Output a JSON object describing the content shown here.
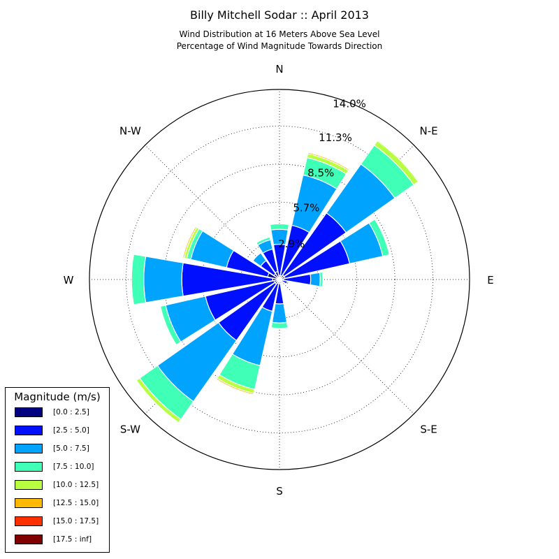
{
  "chart_data": {
    "type": "windrose",
    "title": "Billy Mitchell Sodar :: April 2013",
    "subtitle": [
      "Wind Distribution at 16 Meters Above Sea Level",
      "Percentage of Wind Magnitude Towards Direction"
    ],
    "directions": [
      "N",
      "N-E",
      "E",
      "S-E",
      "S",
      "S-W",
      "W",
      "N-W"
    ],
    "radial_ticks": [
      "2.9%",
      "5.7%",
      "8.5%",
      "11.3%",
      "14.0%"
    ],
    "radial_tick_values": [
      2.85,
      5.7,
      8.5,
      11.3,
      14.0
    ],
    "rmax": 14.0,
    "legend": {
      "title": "Magnitude (m/s)",
      "placement": "lower-left",
      "bins": [
        {
          "label": "[0.0 : 2.5]",
          "color": "#000080"
        },
        {
          "label": "[2.5 : 5.0]",
          "color": "#0010ff"
        },
        {
          "label": "[5.0 : 7.5]",
          "color": "#00a4ff"
        },
        {
          "label": "[7.5 : 10.0]",
          "color": "#40ffb7"
        },
        {
          "label": "[10.0 : 12.5]",
          "color": "#b7ff40"
        },
        {
          "label": "[12.5 : 15.0]",
          "color": "#ffb900"
        },
        {
          "label": "[15.0 : 17.5]",
          "color": "#ff3000"
        },
        {
          "label": "[17.5 : inf]",
          "color": "#800000"
        }
      ]
    },
    "sectors": [
      {
        "direction": 0,
        "cumulative": [
          0.3,
          2.6,
          3.7,
          4.1
        ]
      },
      {
        "direction": 22.5,
        "cumulative": [
          0.3,
          4.1,
          7.9,
          9.2,
          9.5,
          9.6,
          9.65
        ]
      },
      {
        "direction": 45,
        "cumulative": [
          0.4,
          6.0,
          10.4,
          12.1,
          12.5
        ]
      },
      {
        "direction": 67.5,
        "cumulative": [
          0.4,
          5.3,
          7.8,
          8.3
        ]
      },
      {
        "direction": 90,
        "cumulative": [
          0.3,
          2.3,
          3.0,
          3.2
        ]
      },
      {
        "direction": 112.5,
        "cumulative": [
          0.2,
          0.6,
          0.7
        ]
      },
      {
        "direction": 135,
        "cumulative": [
          0.15,
          0.3
        ]
      },
      {
        "direction": 157.5,
        "cumulative": [
          0.15,
          0.3
        ]
      },
      {
        "direction": 180,
        "cumulative": [
          0.3,
          1.8,
          3.2,
          3.6
        ]
      },
      {
        "direction": 202.5,
        "cumulative": [
          0.3,
          2.4,
          6.5,
          8.3,
          8.6,
          8.7
        ]
      },
      {
        "direction": 225,
        "cumulative": [
          0.4,
          5.5,
          11.0,
          12.6,
          12.9
        ]
      },
      {
        "direction": 247.5,
        "cumulative": [
          0.4,
          5.6,
          8.6,
          9.0
        ]
      },
      {
        "direction": 270,
        "cumulative": [
          0.5,
          7.2,
          10.0,
          10.9
        ]
      },
      {
        "direction": 292.5,
        "cumulative": [
          0.9,
          4.0,
          6.7,
          7.0,
          7.2,
          7.3
        ]
      },
      {
        "direction": 315,
        "cumulative": [
          0.5,
          1.7,
          2.4
        ]
      },
      {
        "direction": 337.5,
        "cumulative": [
          0.6,
          2.3,
          3.0,
          3.2
        ]
      }
    ]
  }
}
